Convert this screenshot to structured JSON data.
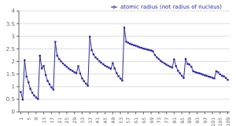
{
  "chart_data": {
    "type": "line",
    "x": [
      1,
      2,
      3,
      4,
      5,
      6,
      7,
      8,
      9,
      10,
      11,
      12,
      13,
      14,
      15,
      16,
      17,
      18,
      19,
      20,
      21,
      22,
      23,
      24,
      25,
      26,
      27,
      28,
      29,
      30,
      31,
      32,
      33,
      34,
      35,
      36,
      37,
      38,
      39,
      40,
      41,
      42,
      43,
      44,
      45,
      46,
      47,
      48,
      49,
      50,
      51,
      52,
      53,
      54,
      55,
      56,
      57,
      58,
      59,
      60,
      61,
      62,
      63,
      64,
      65,
      66,
      67,
      68,
      69,
      70,
      71,
      72,
      73,
      74,
      75,
      76,
      77,
      78,
      79,
      80,
      81,
      82,
      83,
      84,
      85,
      86,
      87,
      88,
      89,
      90,
      91,
      92,
      93,
      94,
      95,
      96,
      97,
      98,
      99,
      100,
      101,
      102,
      103,
      104,
      105,
      106,
      107,
      108,
      109
    ],
    "series": [
      {
        "name": "atomic radius (not radius of nucleus)",
        "color": "#2b2b9a",
        "marker": "square",
        "values": [
          0.79,
          0.49,
          2.05,
          1.4,
          1.17,
          0.91,
          0.75,
          0.65,
          0.57,
          0.51,
          2.23,
          1.72,
          1.82,
          1.46,
          1.23,
          1.09,
          0.97,
          0.88,
          2.77,
          2.23,
          2.09,
          2.0,
          1.92,
          1.85,
          1.79,
          1.72,
          1.67,
          1.62,
          1.57,
          1.53,
          1.81,
          1.52,
          1.33,
          1.22,
          1.12,
          1.03,
          2.98,
          2.45,
          2.27,
          2.16,
          2.09,
          2.01,
          1.95,
          1.89,
          1.83,
          1.79,
          1.75,
          1.71,
          1.93,
          1.72,
          1.53,
          1.42,
          1.32,
          1.24,
          3.34,
          2.78,
          2.74,
          2.7,
          2.67,
          2.64,
          2.62,
          2.59,
          2.56,
          2.54,
          2.51,
          2.49,
          2.47,
          2.45,
          2.43,
          2.4,
          2.25,
          2.16,
          2.09,
          2.02,
          1.97,
          1.92,
          1.87,
          1.83,
          1.79,
          1.76,
          2.08,
          1.81,
          1.63,
          1.53,
          1.43,
          1.34,
          2.1,
          1.9,
          1.88,
          1.79,
          1.61,
          1.58,
          1.55,
          1.53,
          1.51,
          1.48,
          1.45,
          1.43,
          1.4,
          1.38,
          1.35,
          1.33,
          1.61,
          1.57,
          1.49,
          1.43,
          1.41,
          1.34,
          1.27
        ]
      }
    ],
    "xlim": [
      0,
      110
    ],
    "ylim": [
      0,
      4
    ],
    "xticks": [
      1,
      5,
      9,
      13,
      17,
      21,
      25,
      29,
      33,
      37,
      41,
      45,
      49,
      53,
      57,
      61,
      65,
      69,
      73,
      77,
      81,
      85,
      89,
      93,
      97,
      101,
      105,
      109
    ],
    "yticks": [
      0,
      0.5,
      1,
      1.5,
      2,
      2.5,
      3,
      3.5,
      4
    ],
    "grid": true,
    "legend": "upper right"
  }
}
